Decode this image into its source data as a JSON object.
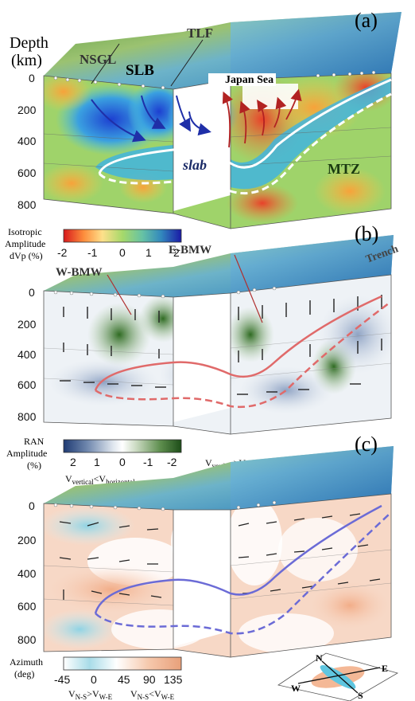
{
  "panels": [
    {
      "id": "a",
      "label": "(a)"
    },
    {
      "id": "b",
      "label": "(b)"
    },
    {
      "id": "c",
      "label": "(c)"
    }
  ],
  "header": {
    "depth_line1": "Depth",
    "depth_line2": "(km)"
  },
  "depth_ticks": [
    "0",
    "200",
    "400",
    "600",
    "800"
  ],
  "panel_a": {
    "labels": {
      "nsgl": "NSGL",
      "tlf": "TLF",
      "slb": "SLB",
      "japan_sea": "Japan Sea",
      "slab": "slab",
      "mtz": "MTZ"
    },
    "colorbar": {
      "title_line1": "Isotropic",
      "title_line2": "Amplitude",
      "title_line3": "dVp (%)",
      "ticks": [
        "-2",
        "-1",
        "0",
        "1",
        "2"
      ],
      "colors": [
        "#d7191c",
        "#fd8d3c",
        "#fee08b",
        "#a6d96a",
        "#66c2a5",
        "#3288bd",
        "#1a1aa6"
      ]
    }
  },
  "panel_b": {
    "labels": {
      "wbmw": "W-BMW",
      "ebmw": "E-BMW",
      "trench": "Trench"
    },
    "colorbar": {
      "title_line1": "RAN",
      "title_line2": "Amplitude",
      "title_line3": "(%)",
      "ticks": [
        "2",
        "1",
        "0",
        "-1",
        "-2"
      ],
      "note_left": "V",
      "note_left_sub1": "vertical",
      "note_left_op": "<V",
      "note_left_sub2": "horizontal",
      "note_right": "V",
      "note_right_sub1": "vertical",
      "note_right_op": ">V",
      "note_right_sub2": "horizontal",
      "colors": [
        "#1f3b73",
        "#6f87ad",
        "#dfe6ee",
        "#ffffff",
        "#c9d9c0",
        "#5f8f4f",
        "#1d4d18"
      ]
    }
  },
  "panel_c": {
    "colorbar": {
      "title_line1": "Azimuth",
      "title_line2": "(deg)",
      "ticks": [
        "-45",
        "0",
        "45",
        "90",
        "135"
      ],
      "note_left": "V",
      "note_left_sub1": "N-S",
      "note_left_op": ">V",
      "note_left_sub2": "W-E",
      "note_right": "V",
      "note_right_sub1": "N-S",
      "note_right_op": "<V",
      "note_right_sub2": "W-E",
      "colors": [
        "#ffffff",
        "#a8dce8",
        "#ffffff",
        "#f6c9ad",
        "#e8a07a"
      ]
    },
    "compass": {
      "n": "N",
      "e": "E",
      "s": "S",
      "w": "W"
    }
  },
  "colors": {
    "slab_line_a": "#ffffff",
    "slab_line_b": "#e06a6a",
    "slab_line_c": "#6b6bd6",
    "flow_arrow": "#1f2fa8",
    "up_arrow": "#b22222"
  }
}
